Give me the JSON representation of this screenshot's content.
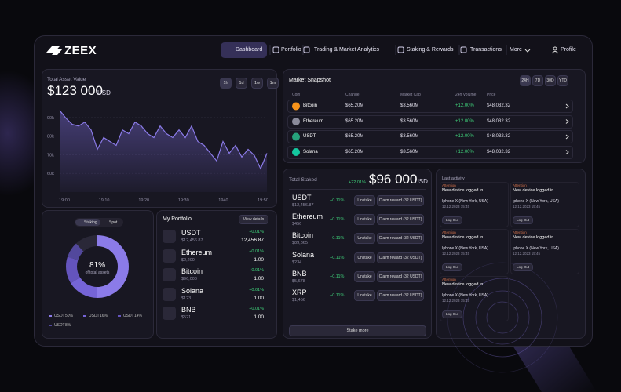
{
  "header": {
    "logo": "ZEEX",
    "nav": [
      "Dashboard",
      "Portfolio",
      "Trading & Market Analytics",
      "Staking & Rewards",
      "Transactions",
      "More"
    ],
    "profile": "Profile"
  },
  "asset_card": {
    "title": "Total Asset Value",
    "amount": "$123 000",
    "currency": "USD",
    "periods": [
      "1h",
      "1d",
      "1w",
      "1m"
    ],
    "chart": {
      "type": "line",
      "color": "#8b7be8",
      "values": [
        93.8,
        89.6,
        86.3,
        85.4,
        87.5,
        83.3,
        72.9,
        79.2,
        77.1,
        75,
        83.3,
        81.3,
        87.5,
        85.4,
        81.3,
        79.2,
        85.4,
        81.3,
        79.2,
        83.3,
        79.2,
        85.4,
        77.1,
        75,
        70.8,
        66.7,
        77.1,
        70.8,
        75,
        68.8,
        72.9,
        69.6,
        62.5,
        70.8
      ],
      "ylim": [
        50,
        100
      ],
      "yticks": [
        {
          "value": 90,
          "label": "90k"
        },
        {
          "value": 80,
          "label": "80k"
        },
        {
          "value": 70,
          "label": "70k"
        },
        {
          "value": 60,
          "label": "60k"
        }
      ],
      "x_labels": [
        "19:00",
        "19:10",
        "19:20",
        "19:30",
        "1940",
        "19:50"
      ]
    }
  },
  "market": {
    "title": "Market Snapshot",
    "periods": [
      "24H",
      "7D",
      "30D",
      "YTD"
    ],
    "columns": [
      "Coin",
      "Change",
      "Market Cap",
      "24h Volume",
      "Price"
    ],
    "rows": [
      [
        "Bitcoin",
        "$65.20M",
        "$3.560M",
        "+12.00%",
        "$48,032.32"
      ],
      [
        "Ethereum",
        "$65.20M",
        "$3.560M",
        "+12.00%",
        "$48,032.32"
      ],
      [
        "USDT",
        "$65.20M",
        "$3.560M",
        "+12.00%",
        "$48,032.32"
      ],
      [
        "Solana",
        "$65.20M",
        "$3.560M",
        "+12.00%",
        "$48,032.32"
      ]
    ]
  },
  "allocation": {
    "toggle": [
      "Staking",
      "Spot"
    ],
    "percent": "81%",
    "caption": "of total assets",
    "chart": {
      "type": "pie",
      "series": [
        {
          "name": "USDT",
          "value": 50,
          "value_label": "50%",
          "color": "#8b7be8"
        },
        {
          "name": "USDT",
          "value": 16,
          "value_label": "16%",
          "color": "#7564d6"
        },
        {
          "name": "USDT",
          "value": 14,
          "value_label": "14%",
          "color": "#6454bd"
        },
        {
          "name": "USDT",
          "value": 8,
          "value_label": "8%",
          "color": "#52489c"
        }
      ]
    }
  },
  "portfolio": {
    "title": "My Portfolio",
    "action": "View details",
    "rows": [
      [
        "USDT",
        "$12,456.87",
        "+0.01%",
        "12,456.87"
      ],
      [
        "Ethereum",
        "$2,200",
        "+0.01%",
        "1.00"
      ],
      [
        "Bitcoin",
        "$96,000",
        "+0.01%",
        "1.00"
      ],
      [
        "Solana",
        "$123",
        "+0.01%",
        "1.00"
      ],
      [
        "BNB",
        "$521",
        "+0.01%",
        "1.00"
      ]
    ]
  },
  "staked": {
    "title": "Total Staked",
    "change": "+22.01%",
    "amount": "$96 000",
    "currency": "USD",
    "actions": [
      "Unstake",
      "Claim reward (32 USDT)"
    ],
    "button": "Stake more",
    "rows": [
      [
        "USDT",
        "$12,456.87",
        "+0.11%"
      ],
      [
        "Ethereum",
        "$456",
        "+0.11%"
      ],
      [
        "Bitcoin",
        "$89,865",
        "+0.11%"
      ],
      [
        "Solana",
        "$234",
        "+0.11%"
      ],
      [
        "BNB",
        "$5,678",
        "+0.11%"
      ],
      [
        "XRP",
        "$1,456",
        "+0.11%"
      ]
    ]
  },
  "activity": {
    "title": "Last activity",
    "entries": [
      {
        "tag": "Attention",
        "event": "New device logged in",
        "device": "Iphone X (New York, USA)",
        "date": "12.12.2023 15:45",
        "action": "Log Out"
      },
      {
        "tag": "Attention",
        "event": "New device logged in",
        "device": "Iphone X (New York, USA)",
        "date": "12.12.2023 15:45",
        "action": "Log Out"
      },
      {
        "tag": "Attention",
        "event": "New device logged in",
        "device": "Iphone X (New York, USA)",
        "date": "12.12.2023 15:45",
        "action": "Log Out"
      },
      {
        "tag": "Attention",
        "event": "New device logged in",
        "device": "Iphone X (New York, USA)",
        "date": "12.12.2023 15:45",
        "action": "Log Out"
      },
      {
        "tag": "Attention",
        "event": "New device logged in",
        "device": "Iphone X (New York, USA)",
        "date": "12.12.2023 15:45",
        "action": "Log Out"
      }
    ]
  }
}
